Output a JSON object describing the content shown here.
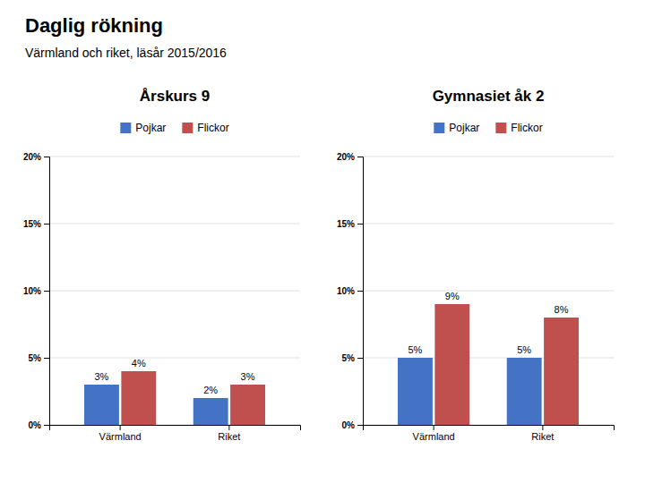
{
  "title": "Daglig rökning",
  "subtitle": "Värmland och riket, läsår 2015/2016",
  "chart_data": [
    {
      "type": "bar",
      "title": "Årskurs 9",
      "categories": [
        "Värmland",
        "Riket"
      ],
      "series": [
        {
          "name": "Pojkar",
          "color": "#4472C4",
          "values": [
            3,
            2
          ],
          "value_labels": [
            "3%",
            "2%"
          ]
        },
        {
          "name": "Flickor",
          "color": "#C0504D",
          "values": [
            4,
            3
          ],
          "value_labels": [
            "4%",
            "3%"
          ]
        }
      ],
      "ylim": [
        0,
        20
      ],
      "yticks": [
        {
          "value": 0,
          "label": "0%"
        },
        {
          "value": 5,
          "label": "5%"
        },
        {
          "value": 10,
          "label": "10%"
        },
        {
          "value": 15,
          "label": "15%"
        },
        {
          "value": 20,
          "label": "20%"
        }
      ],
      "grid": true,
      "data_labels": true,
      "legend": "top"
    },
    {
      "type": "bar",
      "title": "Gymnasiet åk 2",
      "categories": [
        "Värmland",
        "Riket"
      ],
      "series": [
        {
          "name": "Pojkar",
          "color": "#4472C4",
          "values": [
            5,
            5
          ],
          "value_labels": [
            "5%",
            "5%"
          ]
        },
        {
          "name": "Flickor",
          "color": "#C0504D",
          "values": [
            9,
            8
          ],
          "value_labels": [
            "9%",
            "8%"
          ]
        }
      ],
      "ylim": [
        0,
        20
      ],
      "yticks": [
        {
          "value": 0,
          "label": "0%"
        },
        {
          "value": 5,
          "label": "5%"
        },
        {
          "value": 10,
          "label": "10%"
        },
        {
          "value": 15,
          "label": "15%"
        },
        {
          "value": 20,
          "label": "20%"
        }
      ],
      "grid": true,
      "data_labels": true,
      "legend": "top"
    }
  ]
}
